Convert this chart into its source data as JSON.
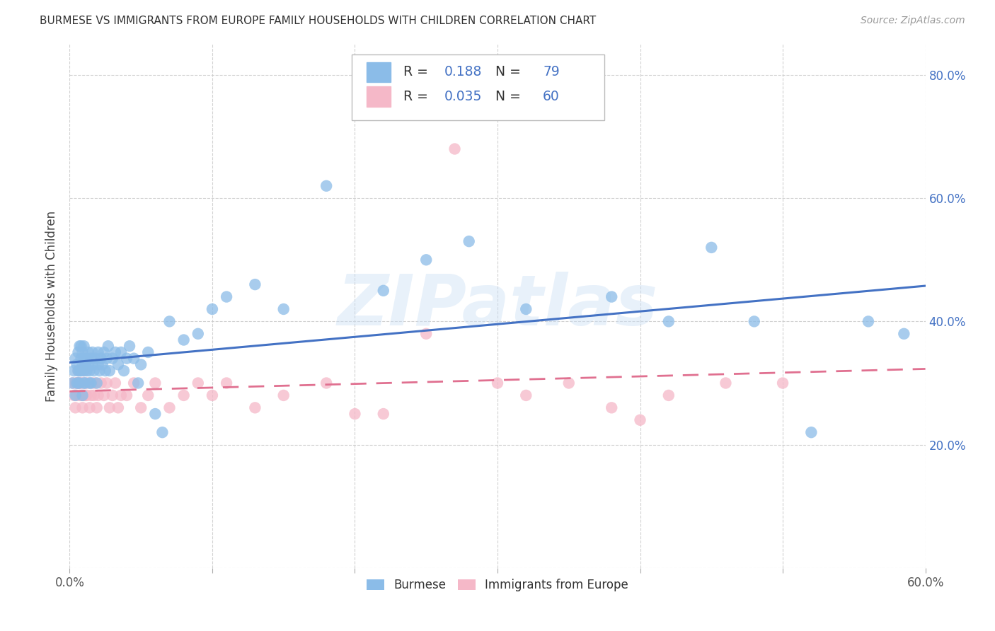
{
  "title": "BURMESE VS IMMIGRANTS FROM EUROPE FAMILY HOUSEHOLDS WITH CHILDREN CORRELATION CHART",
  "source": "Source: ZipAtlas.com",
  "ylabel": "Family Households with Children",
  "watermark": "ZIPatlas",
  "xlim": [
    0.0,
    0.6
  ],
  "ylim": [
    0.0,
    0.85
  ],
  "xtick_vals": [
    0.0,
    0.1,
    0.2,
    0.3,
    0.4,
    0.5,
    0.6
  ],
  "xtick_labels": [
    "0.0%",
    "",
    "",
    "",
    "",
    "",
    "60.0%"
  ],
  "ytick_vals": [
    0.0,
    0.2,
    0.4,
    0.6,
    0.8
  ],
  "ytick_labels_right": [
    "",
    "20.0%",
    "40.0%",
    "60.0%",
    "80.0%"
  ],
  "burmese_color": "#8bbce8",
  "europe_color": "#f5b8c8",
  "burmese_line_color": "#4472c4",
  "europe_line_color": "#e07090",
  "legend_text_color": "#4472c4",
  "R_burmese": 0.188,
  "N_burmese": 79,
  "R_europe": 0.035,
  "N_europe": 60,
  "background_color": "#ffffff",
  "grid_color": "#cccccc",
  "title_color": "#333333",
  "source_color": "#999999",
  "ylabel_color": "#444444",
  "burmese_x": [
    0.002,
    0.003,
    0.004,
    0.004,
    0.005,
    0.005,
    0.006,
    0.006,
    0.006,
    0.007,
    0.007,
    0.007,
    0.008,
    0.008,
    0.008,
    0.009,
    0.009,
    0.009,
    0.01,
    0.01,
    0.01,
    0.01,
    0.011,
    0.011,
    0.012,
    0.012,
    0.013,
    0.013,
    0.014,
    0.014,
    0.015,
    0.015,
    0.016,
    0.016,
    0.017,
    0.018,
    0.019,
    0.02,
    0.02,
    0.021,
    0.022,
    0.023,
    0.024,
    0.025,
    0.026,
    0.027,
    0.028,
    0.03,
    0.032,
    0.034,
    0.036,
    0.038,
    0.04,
    0.042,
    0.045,
    0.048,
    0.05,
    0.055,
    0.06,
    0.065,
    0.07,
    0.08,
    0.09,
    0.1,
    0.11,
    0.13,
    0.15,
    0.18,
    0.22,
    0.25,
    0.28,
    0.32,
    0.38,
    0.42,
    0.45,
    0.48,
    0.52,
    0.56,
    0.585
  ],
  "burmese_y": [
    0.3,
    0.32,
    0.34,
    0.28,
    0.3,
    0.33,
    0.32,
    0.35,
    0.3,
    0.32,
    0.36,
    0.3,
    0.34,
    0.32,
    0.36,
    0.28,
    0.33,
    0.35,
    0.3,
    0.34,
    0.32,
    0.36,
    0.3,
    0.33,
    0.32,
    0.34,
    0.33,
    0.35,
    0.3,
    0.32,
    0.34,
    0.3,
    0.33,
    0.35,
    0.32,
    0.34,
    0.3,
    0.33,
    0.35,
    0.32,
    0.34,
    0.33,
    0.35,
    0.32,
    0.34,
    0.36,
    0.32,
    0.34,
    0.35,
    0.33,
    0.35,
    0.32,
    0.34,
    0.36,
    0.34,
    0.3,
    0.33,
    0.35,
    0.25,
    0.22,
    0.4,
    0.37,
    0.38,
    0.42,
    0.44,
    0.46,
    0.42,
    0.62,
    0.45,
    0.5,
    0.53,
    0.42,
    0.44,
    0.4,
    0.52,
    0.4,
    0.22,
    0.4,
    0.38
  ],
  "europe_x": [
    0.002,
    0.003,
    0.004,
    0.004,
    0.005,
    0.005,
    0.006,
    0.006,
    0.007,
    0.007,
    0.008,
    0.008,
    0.009,
    0.009,
    0.01,
    0.01,
    0.011,
    0.011,
    0.012,
    0.013,
    0.014,
    0.015,
    0.016,
    0.017,
    0.018,
    0.019,
    0.02,
    0.022,
    0.024,
    0.026,
    0.028,
    0.03,
    0.032,
    0.034,
    0.036,
    0.04,
    0.045,
    0.05,
    0.055,
    0.06,
    0.07,
    0.08,
    0.09,
    0.1,
    0.11,
    0.13,
    0.15,
    0.18,
    0.2,
    0.22,
    0.25,
    0.27,
    0.3,
    0.32,
    0.35,
    0.38,
    0.4,
    0.42,
    0.46,
    0.5
  ],
  "europe_y": [
    0.3,
    0.28,
    0.3,
    0.26,
    0.3,
    0.28,
    0.3,
    0.32,
    0.28,
    0.3,
    0.28,
    0.3,
    0.26,
    0.3,
    0.28,
    0.32,
    0.28,
    0.3,
    0.28,
    0.3,
    0.26,
    0.28,
    0.3,
    0.28,
    0.3,
    0.26,
    0.28,
    0.3,
    0.28,
    0.3,
    0.26,
    0.28,
    0.3,
    0.26,
    0.28,
    0.28,
    0.3,
    0.26,
    0.28,
    0.3,
    0.26,
    0.28,
    0.3,
    0.28,
    0.3,
    0.26,
    0.28,
    0.3,
    0.25,
    0.25,
    0.38,
    0.68,
    0.3,
    0.28,
    0.3,
    0.26,
    0.24,
    0.28,
    0.3,
    0.3
  ]
}
